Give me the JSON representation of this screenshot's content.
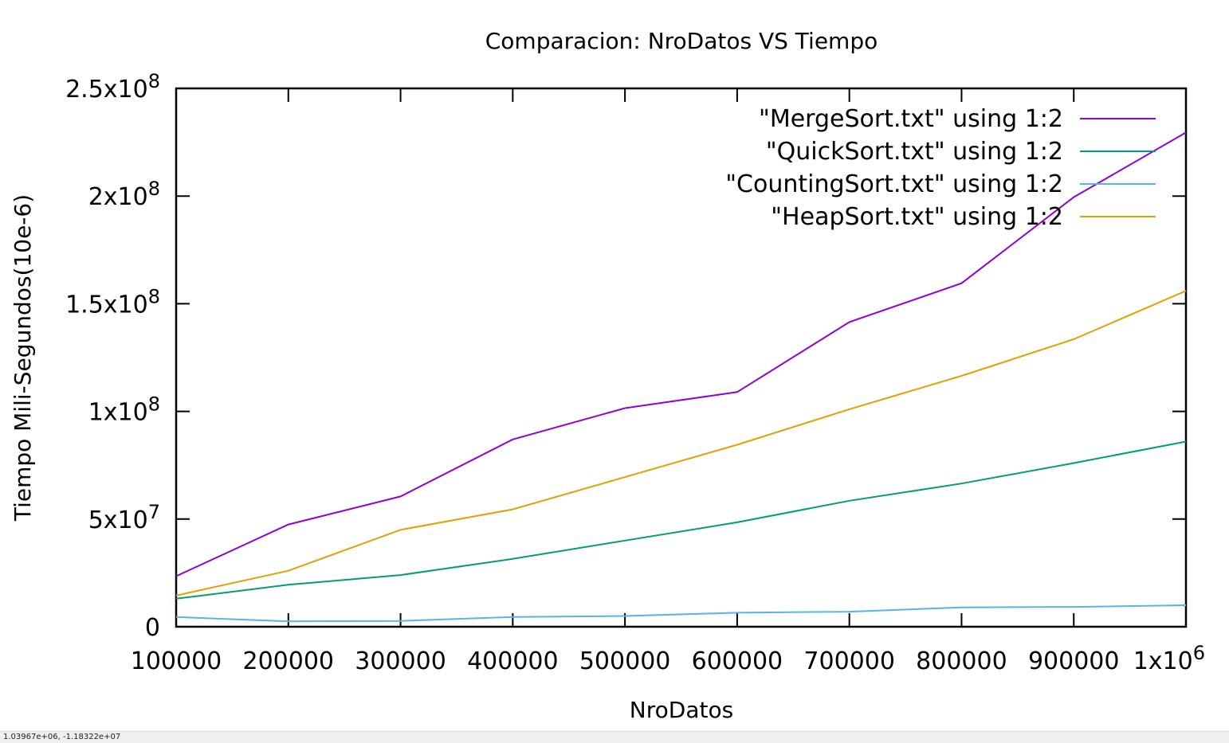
{
  "chart_data": {
    "type": "line",
    "title": "Comparacion: NroDatos VS Tiempo",
    "xlabel": "NroDatos",
    "ylabel": "Tiempo Mili-Segundos(10e-6)",
    "xlim": [
      100000,
      1000000
    ],
    "ylim": [
      0,
      250000000
    ],
    "x": [
      100000,
      200000,
      300000,
      400000,
      500000,
      600000,
      700000,
      800000,
      900000,
      1000000
    ],
    "x_ticks": [
      {
        "value": 100000,
        "base": "100000",
        "exp": ""
      },
      {
        "value": 200000,
        "base": "200000",
        "exp": ""
      },
      {
        "value": 300000,
        "base": "300000",
        "exp": ""
      },
      {
        "value": 400000,
        "base": "400000",
        "exp": ""
      },
      {
        "value": 500000,
        "base": "500000",
        "exp": ""
      },
      {
        "value": 600000,
        "base": "600000",
        "exp": ""
      },
      {
        "value": 700000,
        "base": "700000",
        "exp": ""
      },
      {
        "value": 800000,
        "base": "800000",
        "exp": ""
      },
      {
        "value": 900000,
        "base": "900000",
        "exp": ""
      },
      {
        "value": 1000000,
        "base": "1x10",
        "exp": "6"
      }
    ],
    "y_ticks": [
      {
        "value": 0,
        "base": "0",
        "exp": ""
      },
      {
        "value": 50000000,
        "base": "5x10",
        "exp": "7"
      },
      {
        "value": 100000000,
        "base": "1x10",
        "exp": "8"
      },
      {
        "value": 150000000,
        "base": "1.5x10",
        "exp": "8"
      },
      {
        "value": 200000000,
        "base": "2x10",
        "exp": "8"
      },
      {
        "value": 250000000,
        "base": "2.5x10",
        "exp": "8"
      }
    ],
    "grid": false,
    "legend_position": "top-right",
    "series": [
      {
        "name": "\"MergeSort.txt\" using 1:2",
        "color": "#9400d3",
        "values": [
          23500000,
          47500000,
          60500000,
          87000000,
          101500000,
          109000000,
          141500000,
          159500000,
          199500000,
          229500000
        ]
      },
      {
        "name": "\"QuickSort.txt\" using 1:2",
        "color": "#009e73",
        "values": [
          13000000,
          19500000,
          24000000,
          31500000,
          40000000,
          48500000,
          58500000,
          66500000,
          76000000,
          86000000
        ]
      },
      {
        "name": "\"CountingSort.txt\" using 1:2",
        "color": "#56b4e9",
        "values": [
          4500000,
          2500000,
          2700000,
          4500000,
          5000000,
          6500000,
          7000000,
          9000000,
          9200000,
          10000000
        ]
      },
      {
        "name": "\"HeapSort.txt\" using 1:2",
        "color": "#e69f00",
        "values": [
          14500000,
          26000000,
          45000000,
          54500000,
          69500000,
          84500000,
          101000000,
          116500000,
          133500000,
          156000000
        ]
      }
    ]
  },
  "status_bar": {
    "coordinates": "1.03967e+06, -1.18322e+07"
  }
}
